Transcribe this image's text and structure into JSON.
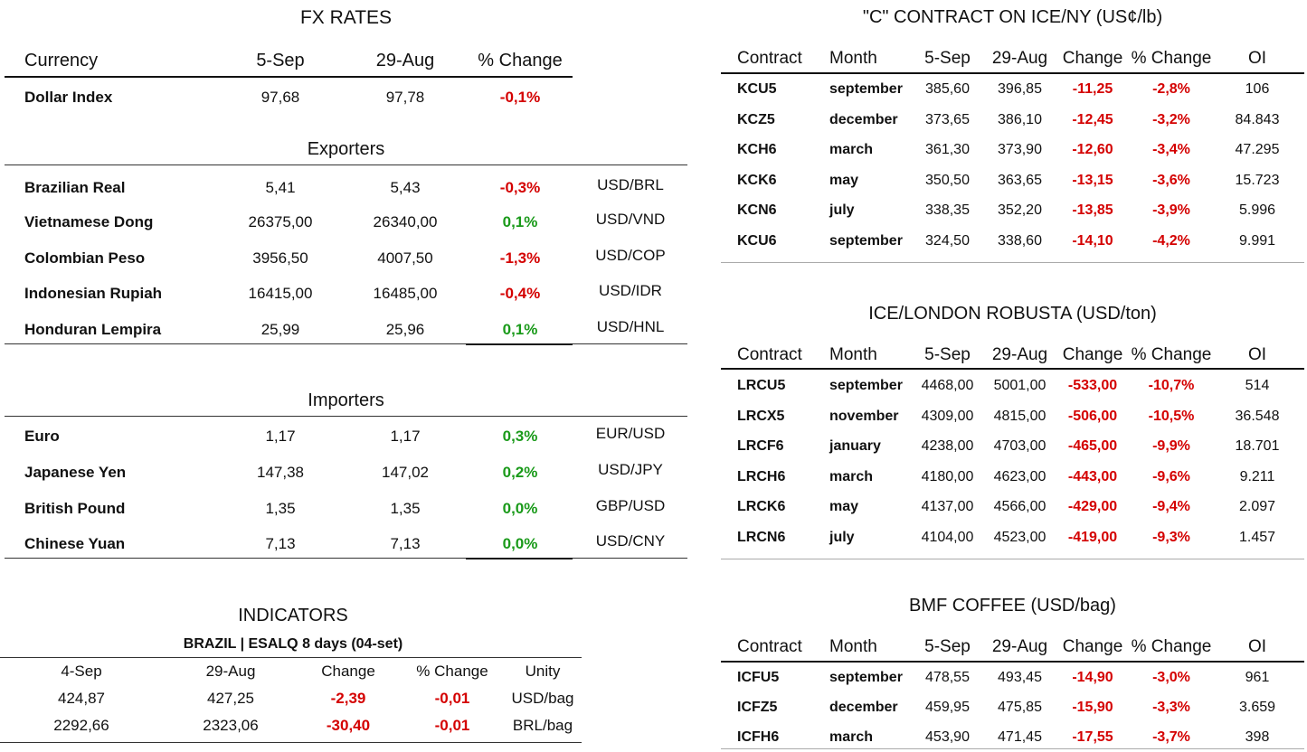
{
  "fx": {
    "title": "FX RATES",
    "headers": [
      "Currency",
      "5-Sep",
      "29-Aug",
      "% Change"
    ],
    "dollar_index": {
      "name": "Dollar Index",
      "v1": "97,68",
      "v2": "97,78",
      "chg": "-0,1%"
    },
    "exporters_title": "Exporters",
    "exporters": [
      {
        "name": "Brazilian Real",
        "v1": "5,41",
        "v2": "5,43",
        "chg": "-0,3%",
        "pair": "USD/BRL"
      },
      {
        "name": "Vietnamese Dong",
        "v1": "26375,00",
        "v2": "26340,00",
        "chg": "0,1%",
        "pair": "USD/VND"
      },
      {
        "name": "Colombian Peso",
        "v1": "3956,50",
        "v2": "4007,50",
        "chg": "-1,3%",
        "pair": "USD/COP"
      },
      {
        "name": "Indonesian Rupiah",
        "v1": "16415,00",
        "v2": "16485,00",
        "chg": "-0,4%",
        "pair": "USD/IDR"
      },
      {
        "name": "Honduran Lempira",
        "v1": "25,99",
        "v2": "25,96",
        "chg": "0,1%",
        "pair": "USD/HNL"
      }
    ],
    "importers_title": "Importers",
    "importers": [
      {
        "name": "Euro",
        "v1": "1,17",
        "v2": "1,17",
        "chg": "0,3%",
        "pair": "EUR/USD"
      },
      {
        "name": "Japanese Yen",
        "v1": "147,38",
        "v2": "147,02",
        "chg": "0,2%",
        "pair": "USD/JPY"
      },
      {
        "name": "British Pound",
        "v1": "1,35",
        "v2": "1,35",
        "chg": "0,0%",
        "pair": "GBP/USD"
      },
      {
        "name": "Chinese Yuan",
        "v1": "7,13",
        "v2": "7,13",
        "chg": "0,0%",
        "pair": "USD/CNY"
      }
    ]
  },
  "indicators": {
    "title": "INDICATORS",
    "subtitle": "BRAZIL | ESALQ 8 days (04-set)",
    "headers": [
      "4-Sep",
      "29-Aug",
      "Change",
      "% Change",
      "Unity"
    ],
    "rows": [
      [
        "424,87",
        "427,25",
        "-2,39",
        "-0,01",
        "USD/bag"
      ],
      [
        "2292,66",
        "2323,06",
        "-30,40",
        "-0,01",
        "BRL/bag"
      ]
    ]
  },
  "colors": {
    "negative": "#d40000",
    "positive": "#1a9a1a"
  },
  "ice_ny": {
    "title": "\"C\" CONTRACT ON ICE/NY (US¢/lb)",
    "headers": [
      "Contract",
      "Month",
      "5-Sep",
      "29-Aug",
      "Change",
      "% Change",
      "OI"
    ],
    "rows": [
      [
        "KCU5",
        "september",
        "385,60",
        "396,85",
        "-11,25",
        "-2,8%",
        "106"
      ],
      [
        "KCZ5",
        "december",
        "373,65",
        "386,10",
        "-12,45",
        "-3,2%",
        "84.843"
      ],
      [
        "KCH6",
        "march",
        "361,30",
        "373,90",
        "-12,60",
        "-3,4%",
        "47.295"
      ],
      [
        "KCK6",
        "may",
        "350,50",
        "363,65",
        "-13,15",
        "-3,6%",
        "15.723"
      ],
      [
        "KCN6",
        "july",
        "338,35",
        "352,20",
        "-13,85",
        "-3,9%",
        "5.996"
      ],
      [
        "KCU6",
        "september",
        "324,50",
        "338,60",
        "-14,10",
        "-4,2%",
        "9.991"
      ]
    ]
  },
  "ice_london": {
    "title": "ICE/LONDON ROBUSTA (USD/ton)",
    "headers": [
      "Contract",
      "Month",
      "5-Sep",
      "29-Aug",
      "Change",
      "% Change",
      "OI"
    ],
    "rows": [
      [
        "LRCU5",
        "september",
        "4468,00",
        "5001,00",
        "-533,00",
        "-10,7%",
        "514"
      ],
      [
        "LRCX5",
        "november",
        "4309,00",
        "4815,00",
        "-506,00",
        "-10,5%",
        "36.548"
      ],
      [
        "LRCF6",
        "january",
        "4238,00",
        "4703,00",
        "-465,00",
        "-9,9%",
        "18.701"
      ],
      [
        "LRCH6",
        "march",
        "4180,00",
        "4623,00",
        "-443,00",
        "-9,6%",
        "9.211"
      ],
      [
        "LRCK6",
        "may",
        "4137,00",
        "4566,00",
        "-429,00",
        "-9,4%",
        "2.097"
      ],
      [
        "LRCN6",
        "july",
        "4104,00",
        "4523,00",
        "-419,00",
        "-9,3%",
        "1.457"
      ]
    ]
  },
  "bmf": {
    "title": "BMF COFFEE (USD/bag)",
    "headers": [
      "Contract",
      "Month",
      "5-Sep",
      "29-Aug",
      "Change",
      "% Change",
      "OI"
    ],
    "rows": [
      [
        "ICFU5",
        "september",
        "478,55",
        "493,45",
        "-14,90",
        "-3,0%",
        "961"
      ],
      [
        "ICFZ5",
        "december",
        "459,95",
        "475,85",
        "-15,90",
        "-3,3%",
        "3.659"
      ],
      [
        "ICFH6",
        "march",
        "453,90",
        "471,45",
        "-17,55",
        "-3,7%",
        "398"
      ]
    ]
  }
}
